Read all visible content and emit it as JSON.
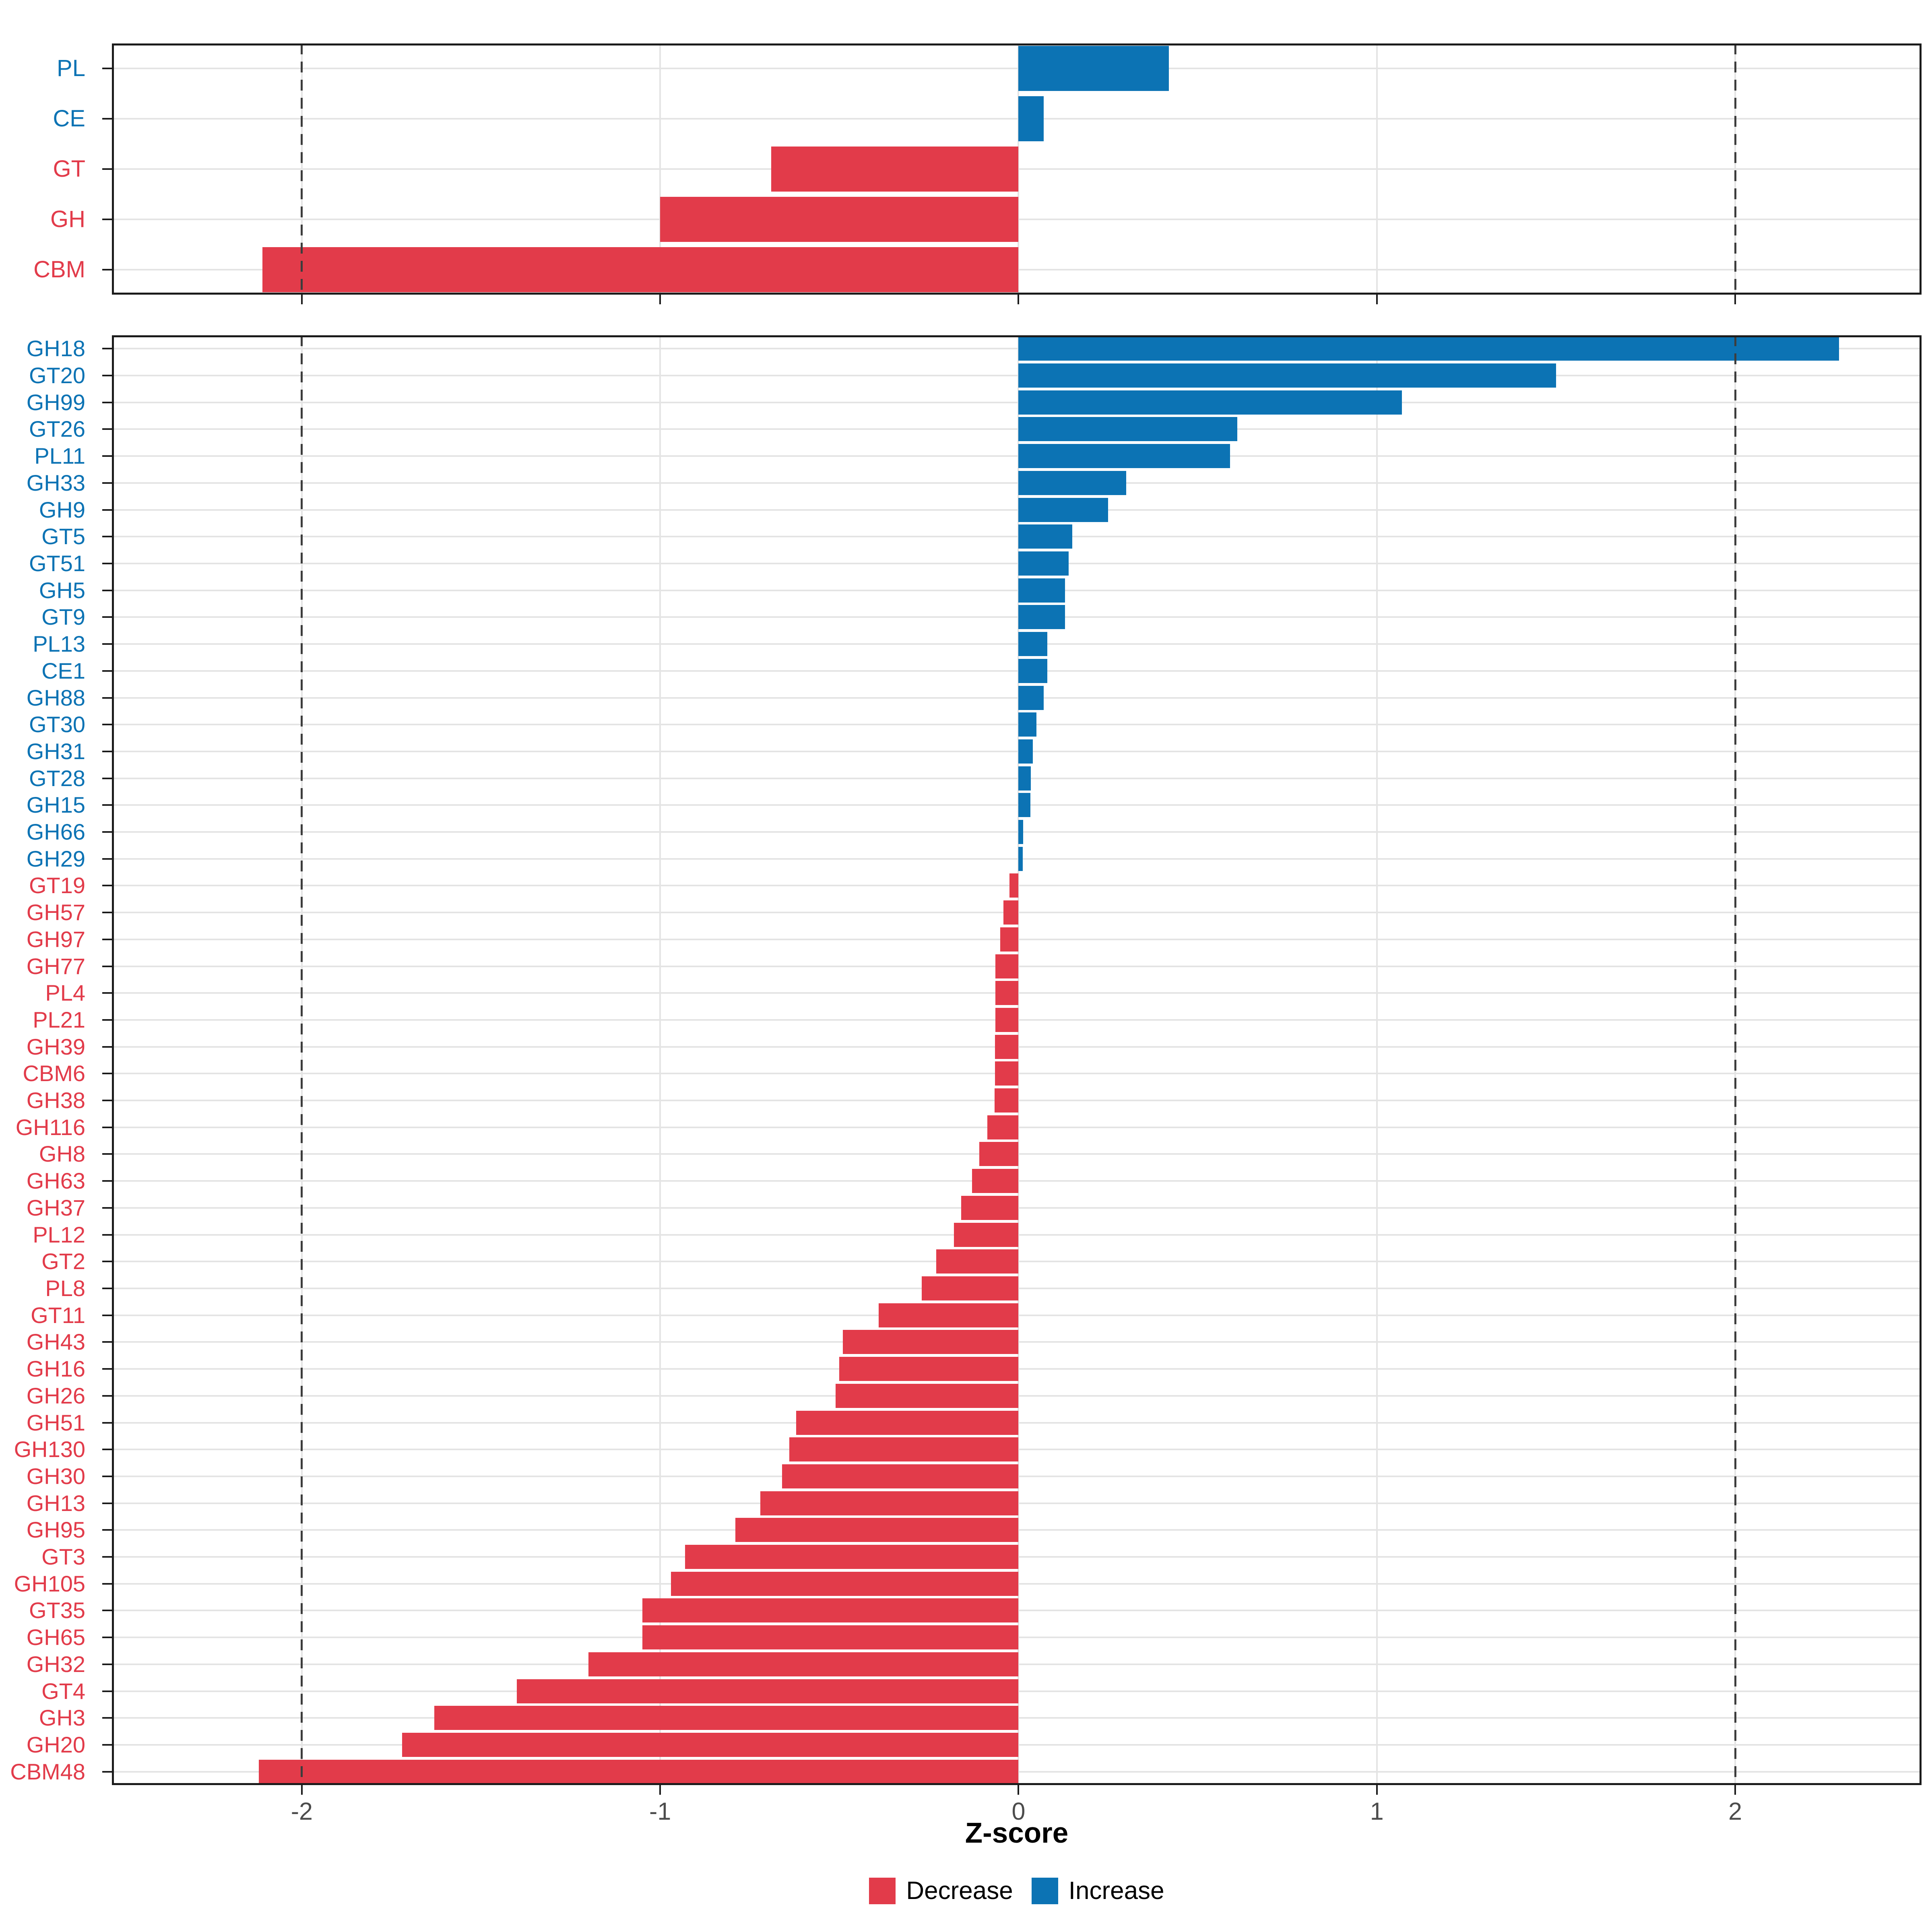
{
  "axis": {
    "label": "Z-score",
    "tick_labels": [
      "-2",
      "-1",
      "0",
      "1",
      "2"
    ],
    "tick_values": [
      -2,
      -1,
      0,
      1,
      2
    ],
    "domain": [
      -2.53,
      2.52
    ],
    "reference_lines": [
      -2,
      2
    ]
  },
  "legend": {
    "items": [
      {
        "label": "Decrease",
        "color": "#e23b4a"
      },
      {
        "label": "Increase",
        "color": "#0c73b4"
      }
    ]
  },
  "colors": {
    "decrease": "#e23b4a",
    "increase": "#0c73b4",
    "grid": "#e4e4e4",
    "panel_border": "#1b1b1b",
    "axis_tick_text": "#4c4c4c",
    "reference_line": "#3d3d3d",
    "axis_title": "#000000"
  },
  "chart_data": [
    {
      "id": "cazyme-classes",
      "type": "bar",
      "orientation": "horizontal",
      "title": "",
      "xlabel": "Z-score",
      "xlim": [
        -2.53,
        2.52
      ],
      "xticks": [
        -2,
        -1,
        0,
        1,
        2
      ],
      "reference_lines": [
        -2,
        2
      ],
      "grid": true,
      "categories": [
        "PL",
        "CE",
        "GT",
        "GH",
        "CBM"
      ],
      "values": [
        0.42,
        0.07,
        -0.69,
        -1.0,
        -2.11
      ],
      "color_rule": {
        "positive": "Increase",
        "negative": "Decrease"
      }
    },
    {
      "id": "cazyme-families",
      "type": "bar",
      "orientation": "horizontal",
      "title": "",
      "xlabel": "Z-score",
      "xlim": [
        -2.53,
        2.52
      ],
      "xticks": [
        -2,
        -1,
        0,
        1,
        2
      ],
      "reference_lines": [
        -2,
        2
      ],
      "grid": true,
      "categories": [
        "GH18",
        "GT20",
        "GH99",
        "GT26",
        "PL11",
        "GH33",
        "GH9",
        "GT5",
        "GT51",
        "GH5",
        "GT9",
        "PL13",
        "CE1",
        "GH88",
        "GT30",
        "GH31",
        "GT28",
        "GH15",
        "GH66",
        "GH29",
        "GT19",
        "GH57",
        "GH97",
        "GH77",
        "PL4",
        "PL21",
        "GH39",
        "CBM6",
        "GH38",
        "GH116",
        "GH8",
        "GH63",
        "GH37",
        "PL12",
        "GT2",
        "PL8",
        "GT11",
        "GH43",
        "GH16",
        "GH26",
        "GH51",
        "GH130",
        "GH30",
        "GH13",
        "GH95",
        "GT3",
        "GH105",
        "GT35",
        "GH65",
        "GH32",
        "GT4",
        "GH3",
        "GH20",
        "CBM48"
      ],
      "values": [
        2.29,
        1.5,
        1.07,
        0.61,
        0.59,
        0.3,
        0.25,
        0.15,
        0.14,
        0.13,
        0.13,
        0.08,
        0.08,
        0.07,
        0.05,
        0.04,
        0.034,
        0.033,
        0.013,
        0.012,
        -0.025,
        -0.042,
        -0.051,
        -0.064,
        -0.065,
        -0.065,
        -0.066,
        -0.066,
        -0.067,
        -0.087,
        -0.11,
        -0.13,
        -0.16,
        -0.18,
        -0.23,
        -0.27,
        -0.39,
        -0.49,
        -0.5,
        -0.51,
        -0.62,
        -0.64,
        -0.66,
        -0.72,
        -0.79,
        -0.93,
        -0.97,
        -1.05,
        -1.05,
        -1.2,
        -1.4,
        -1.63,
        -1.72,
        -2.12
      ],
      "color_rule": {
        "positive": "Increase",
        "negative": "Decrease"
      }
    }
  ]
}
